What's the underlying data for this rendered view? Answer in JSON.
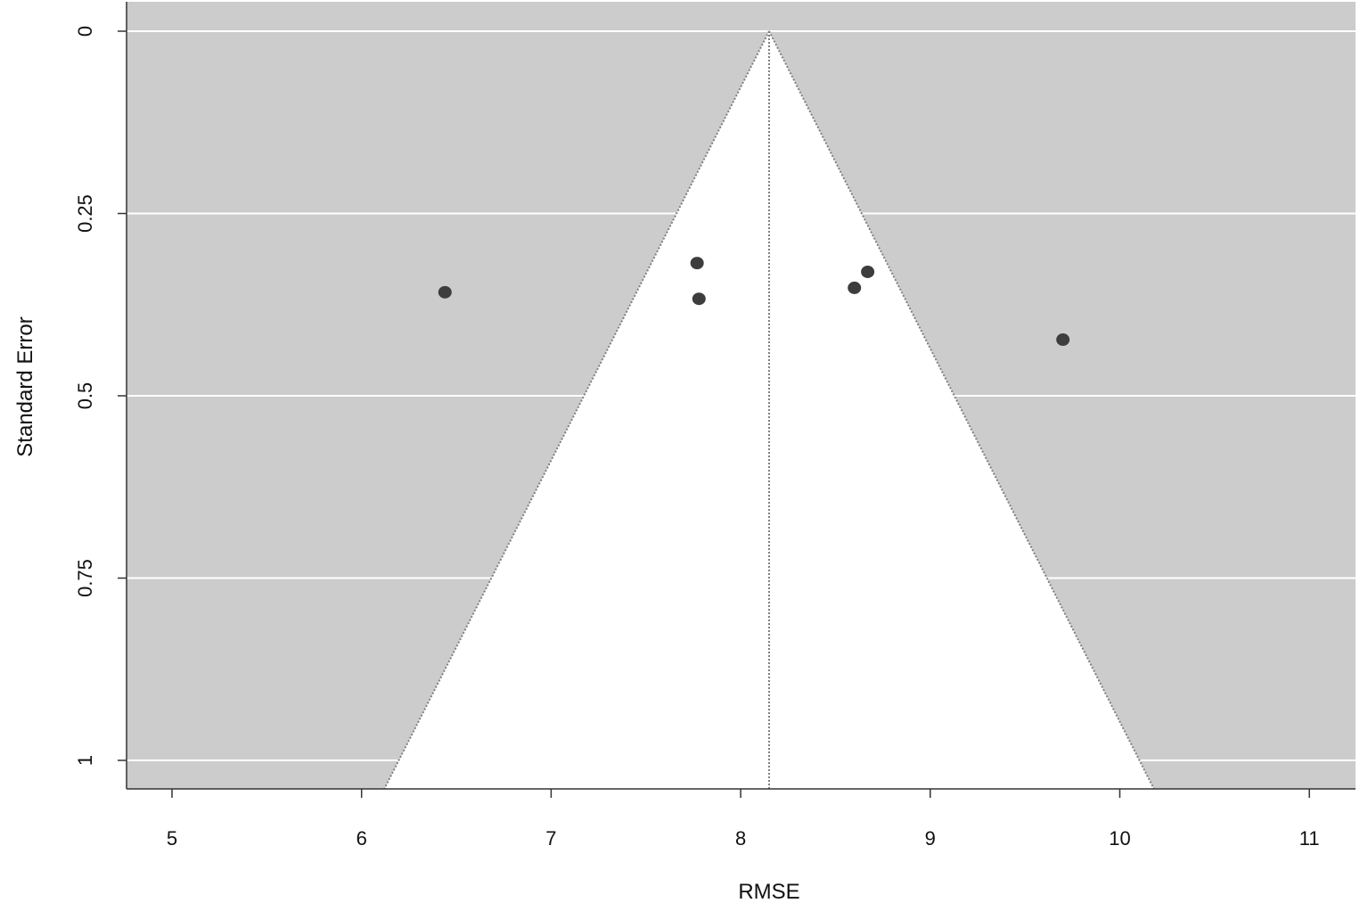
{
  "chart_data": {
    "type": "scatter",
    "subtype": "funnel-plot",
    "title": "",
    "xlabel": "RMSE",
    "ylabel": "Standard Error",
    "xlim": [
      4.76,
      11.24
    ],
    "ylim": [
      1.04,
      -0.04
    ],
    "y_reversed": true,
    "x_ticks": [
      "5",
      "6",
      "7",
      "8",
      "9",
      "10",
      "11"
    ],
    "y_ticks": [
      "0",
      "0.25",
      "0.5",
      "0.75",
      "1"
    ],
    "grid": true,
    "legend": "none",
    "pooled_estimate": 8.15,
    "funnel_apex": [
      8.15,
      0
    ],
    "funnel_base": [
      [
        6.12,
        1.04
      ],
      [
        10.18,
        1.04
      ]
    ],
    "points": [
      {
        "x": 6.44,
        "y": 0.358
      },
      {
        "x": 7.77,
        "y": 0.318
      },
      {
        "x": 7.78,
        "y": 0.367
      },
      {
        "x": 8.6,
        "y": 0.352
      },
      {
        "x": 8.67,
        "y": 0.33
      },
      {
        "x": 9.7,
        "y": 0.423
      }
    ],
    "colors": {
      "panel_background": "#cccccc",
      "funnel_fill": "#ffffff",
      "grid_line": "#ffffff",
      "funnel_edge": "#808080",
      "point": "#3d3d3d",
      "axis": "#333333"
    }
  }
}
